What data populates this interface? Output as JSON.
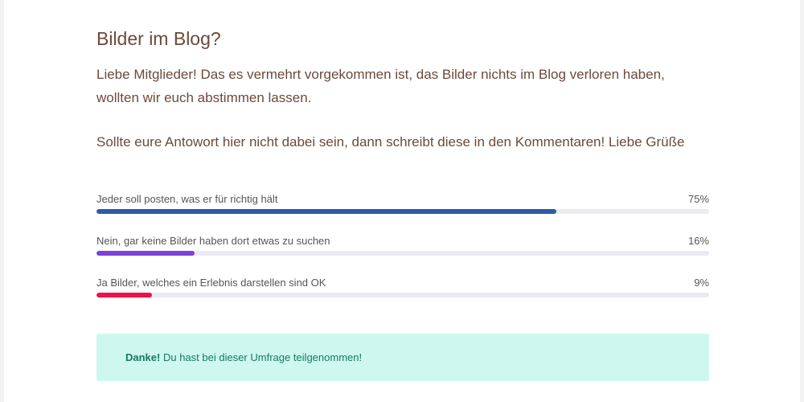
{
  "poll": {
    "title": "Bilder im Blog?",
    "description": [
      "Liebe Mitglieder! Das es vermehrt vorgekommen ist, das Bilder nichts im Blog verloren haben, wollten wir euch abstimmen lassen.",
      "Sollte eure Antowort hier nicht dabei sein, dann schreibt diese in den Kommentaren! Liebe Grüße"
    ],
    "options": [
      {
        "label": "Jeder soll posten, was er für richtig hält",
        "percent_text": "75%",
        "percent": 75,
        "color": "#2d5ba6"
      },
      {
        "label": "Nein, gar keine Bilder haben dort etwas zu suchen",
        "percent_text": "16%",
        "percent": 16,
        "color": "#7d40d8"
      },
      {
        "label": "Ja Bilder, welches ein Erlebnis darstellen sind OK",
        "percent_text": "9%",
        "percent": 9,
        "color": "#f0104a"
      }
    ],
    "notice": {
      "strong": "Danke!",
      "text": " Du hast bei dieser Umfrage teilgenommen!"
    }
  }
}
